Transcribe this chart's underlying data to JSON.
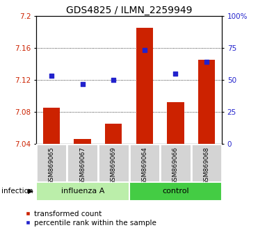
{
  "title": "GDS4825 / ILMN_2259949",
  "categories": [
    "GSM869065",
    "GSM869067",
    "GSM869069",
    "GSM869064",
    "GSM869066",
    "GSM869068"
  ],
  "group_labels": [
    "influenza A",
    "control"
  ],
  "bar_values": [
    7.085,
    7.046,
    7.065,
    7.185,
    7.092,
    7.145
  ],
  "scatter_values": [
    7.125,
    7.115,
    7.12,
    7.157,
    7.128,
    7.143
  ],
  "bar_color": "#cc2200",
  "scatter_color": "#2222cc",
  "ylim": [
    7.04,
    7.2
  ],
  "y_ticks": [
    7.04,
    7.08,
    7.12,
    7.16,
    7.2
  ],
  "y_ticks_right": [
    0,
    25,
    50,
    75,
    100
  ],
  "infection_label": "infection",
  "legend_bar": "transformed count",
  "legend_scatter": "percentile rank within the sample",
  "bar_width": 0.55,
  "title_fontsize": 10,
  "tick_fontsize": 7.5,
  "cat_fontsize": 6.5,
  "group_fontsize": 8,
  "legend_fontsize": 7.5,
  "influenza_color": "#bbeeaa",
  "control_color": "#44cc44",
  "xticklabel_bg": "#d4d4d4",
  "xticklabel_border": "#ffffff"
}
